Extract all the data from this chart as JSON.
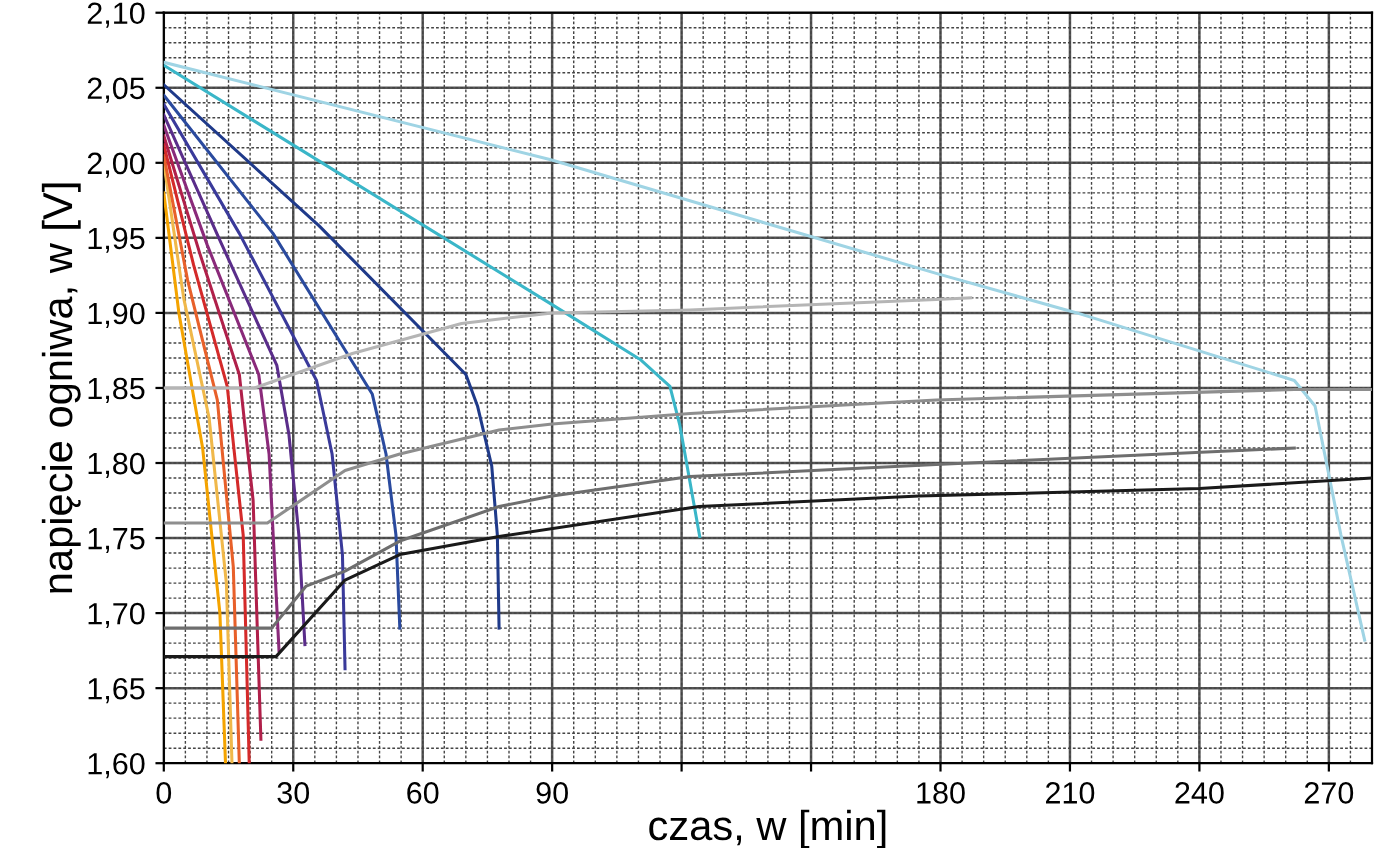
{
  "chart_data": {
    "type": "line",
    "xlabel": "czas, w [min]",
    "ylabel": "napięcie ogniwa, w [V]",
    "xlim": [
      0,
      280
    ],
    "ylim": [
      1.6,
      2.1
    ],
    "xticks": [
      0,
      30,
      60,
      90,
      {
        "value": 120,
        "label": null
      },
      {
        "value": 150,
        "label": null
      },
      180,
      210,
      240,
      270
    ],
    "yticks": [
      {
        "value": 1.6,
        "label": "1,60"
      },
      {
        "value": 1.65,
        "label": "1,65"
      },
      {
        "value": 1.7,
        "label": "1,70"
      },
      {
        "value": 1.75,
        "label": "1,75"
      },
      {
        "value": 1.8,
        "label": "1,80"
      },
      {
        "value": 1.85,
        "label": "1,85"
      },
      {
        "value": 1.9,
        "label": "1,90"
      },
      {
        "value": 1.95,
        "label": "1,95"
      },
      {
        "value": 2.0,
        "label": "2,00"
      },
      {
        "value": 2.05,
        "label": "2,05"
      },
      {
        "value": 2.1,
        "label": "2,10"
      }
    ],
    "grid": true,
    "marker": "none",
    "line_style": "solid",
    "series": [
      {
        "color": "#f4a300",
        "x": [
          0,
          3.5,
          9,
          13,
          14.3
        ],
        "values": [
          1.98,
          1.9,
          1.81,
          1.7,
          1.6
        ]
      },
      {
        "color": "#f0b84a",
        "x": [
          0,
          4.6,
          10.5,
          14.5,
          15.8
        ],
        "values": [
          2.0,
          1.91,
          1.83,
          1.72,
          1.6
        ]
      },
      {
        "color": "#e8602a",
        "x": [
          0,
          5.5,
          12.4,
          16.1,
          17.5
        ],
        "values": [
          2.005,
          1.922,
          1.842,
          1.731,
          1.6
        ]
      },
      {
        "color": "#d42a2a",
        "x": [
          0,
          6.9,
          14.7,
          18.4,
          19.8
        ],
        "values": [
          2.012,
          1.932,
          1.851,
          1.752,
          1.6
        ]
      },
      {
        "color": "#b0204a",
        "x": [
          0,
          8.3,
          17.5,
          20.7,
          22.5
        ],
        "values": [
          2.018,
          1.94,
          1.859,
          1.775,
          1.616
        ]
      },
      {
        "color": "#8a2a7a",
        "x": [
          0,
          10.1,
          22,
          24.4,
          26.7
        ],
        "values": [
          2.025,
          1.945,
          1.859,
          1.806,
          1.675
        ]
      },
      {
        "color": "#5a2d8a",
        "x": [
          0,
          12.9,
          26.2,
          29,
          31.3,
          32.7
        ],
        "values": [
          2.032,
          1.949,
          1.865,
          1.819,
          1.752,
          1.679
        ]
      },
      {
        "color": "#3a3a9a",
        "x": [
          0,
          17.5,
          35.4,
          39,
          41.4,
          42
        ],
        "values": [
          2.039,
          1.953,
          1.855,
          1.806,
          1.739,
          1.663
        ]
      },
      {
        "color": "#2a4a9e",
        "x": [
          0,
          25.3,
          48.3,
          51.5,
          53.8,
          54.7
        ],
        "values": [
          2.045,
          1.953,
          1.846,
          1.806,
          1.752,
          1.69
        ]
      },
      {
        "color": "#1f3a8a",
        "x": [
          0,
          36,
          70,
          72.7,
          76,
          77.3,
          77.7
        ],
        "values": [
          2.052,
          1.958,
          1.859,
          1.838,
          1.798,
          1.752,
          1.69
        ]
      },
      {
        "color": "#3ab6c8",
        "x": [
          0,
          89.7,
          110.4,
          117.3,
          119.6,
          121.9,
          124.2
        ],
        "values": [
          2.065,
          1.906,
          1.869,
          1.851,
          1.825,
          1.788,
          1.751
        ]
      },
      {
        "color": "#9fd4e4",
        "x": [
          0,
          89.7,
          179.4,
          211.6,
          262,
          266.8,
          272.8,
          278.3
        ],
        "values": [
          2.067,
          2.002,
          1.926,
          1.9,
          1.855,
          1.838,
          1.752,
          1.682
        ]
      },
      {
        "color": "#1a1a1a",
        "x": [
          0,
          26,
          42,
          54.7,
          77.7,
          124,
          175,
          240,
          280
        ],
        "values": [
          1.671,
          1.671,
          1.722,
          1.739,
          1.751,
          1.771,
          1.778,
          1.783,
          1.79
        ]
      },
      {
        "color": "#6e6e6e",
        "x": [
          0,
          25,
          33,
          42,
          54.7,
          77.7,
          90,
          122,
          179,
          262
        ],
        "values": [
          1.69,
          1.69,
          1.718,
          1.728,
          1.748,
          1.771,
          1.778,
          1.791,
          1.799,
          1.81
        ]
      },
      {
        "color": "#8e8e8e",
        "x": [
          0,
          24,
          42,
          54.7,
          77.7,
          90,
          122,
          179,
          262,
          280
        ],
        "values": [
          1.76,
          1.76,
          1.795,
          1.806,
          1.822,
          1.826,
          1.833,
          1.842,
          1.849,
          1.849
        ]
      },
      {
        "color": "#b5b5b5",
        "x": [
          0,
          21,
          43.7,
          69,
          90,
          122,
          179,
          187
        ],
        "values": [
          1.85,
          1.85,
          1.873,
          1.893,
          1.9,
          1.902,
          1.909,
          1.91
        ]
      }
    ]
  }
}
